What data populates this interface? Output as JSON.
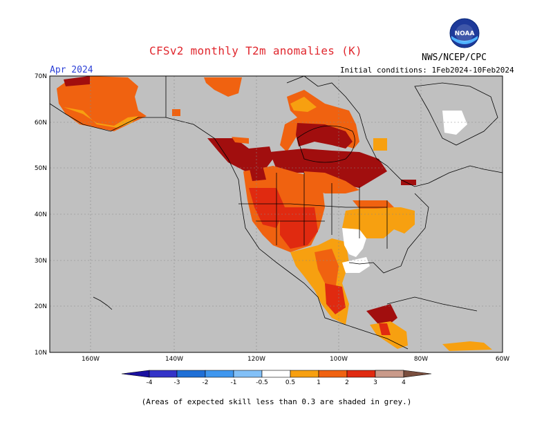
{
  "title": "CFSv2 monthly T2m anomalies (K)",
  "agency": "NWS/NCEP/CPC",
  "logo_text": "NOAA",
  "month": "Apr 2024",
  "initial_conditions": "Initial conditions: 1Feb2024-10Feb2024",
  "footnote": "(Areas of expected skill less than 0.3 are shaded in grey.)",
  "map": {
    "lon_labels": [
      "160W",
      "140W",
      "120W",
      "100W",
      "80W",
      "60W"
    ],
    "lat_labels": [
      "10N",
      "20N",
      "30N",
      "40N",
      "50N",
      "60N",
      "70N"
    ],
    "land_no_skill_color": "#c0c0c0",
    "ocean_color": "#c0c0c0"
  },
  "colorbar": {
    "labels": [
      "-4",
      "-3",
      "-2",
      "-1",
      "-0.5",
      "0.5",
      "1",
      "2",
      "3",
      "4"
    ],
    "colors": [
      "#1a10a0",
      "#3333c8",
      "#1f6fd6",
      "#3f97ef",
      "#82c0f7",
      "#ffffff",
      "#f7a010",
      "#f06210",
      "#e02a10",
      "#a10e0e",
      "#c99a8a",
      "#7a4e3e"
    ]
  },
  "colors": {
    "title": "#e0262d",
    "month": "#2b3fd6",
    "c05_1": "#f7a010",
    "c1_2": "#f06210",
    "c2_3": "#e02a10",
    "c3_4": "#a10e0e"
  }
}
